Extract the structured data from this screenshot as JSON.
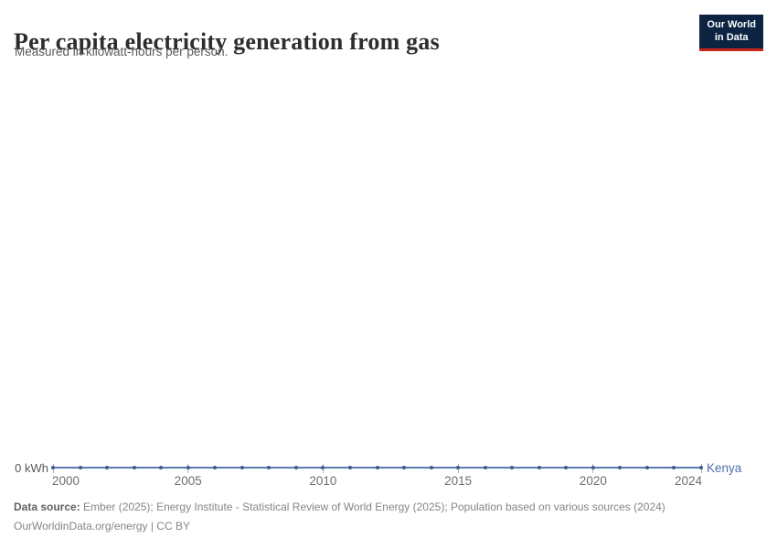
{
  "header": {
    "title": "Per capita electricity generation from gas",
    "subtitle": "Measured in kilowatt-hours per person.",
    "logo": {
      "line1": "Our World",
      "line2": "in Data",
      "bg_color": "#0C2342",
      "accent_color": "#C7251C"
    }
  },
  "chart_data": {
    "type": "line",
    "title": "Per capita electricity generation from gas",
    "ylabel": "kilowatt-hours per person",
    "x": [
      2000,
      2001,
      2002,
      2003,
      2004,
      2005,
      2006,
      2007,
      2008,
      2009,
      2010,
      2011,
      2012,
      2013,
      2014,
      2015,
      2016,
      2017,
      2018,
      2019,
      2020,
      2021,
      2022,
      2023,
      2024
    ],
    "series": [
      {
        "name": "Kenya",
        "color": "#5B7CB0",
        "marker_color": "#3D5A8F",
        "label_color": "#4C6FA8",
        "values": [
          0,
          0,
          0,
          0,
          0,
          0,
          0,
          0,
          0,
          0,
          0,
          0,
          0,
          0,
          0,
          0,
          0,
          0,
          0,
          0,
          0,
          0,
          0,
          0,
          0
        ]
      }
    ],
    "x_tick_labels": [
      "2000",
      "2005",
      "2010",
      "2015",
      "2020",
      "2024"
    ],
    "y_tick_labels": [
      "0 kWh"
    ],
    "ylim": [
      0,
      0
    ],
    "grid": false,
    "legend_position": "right-of-line-end"
  },
  "axis": {
    "y_zero_label": "0 kWh",
    "entity_label": "Kenya"
  },
  "footer": {
    "data_source_label": "Data source:",
    "data_source_text": " Ember (2025); Energy Institute - Statistical Review of World Energy (2025); Population based on various sources (2024)",
    "link_text": "OurWorldinData.org/energy | CC BY"
  }
}
